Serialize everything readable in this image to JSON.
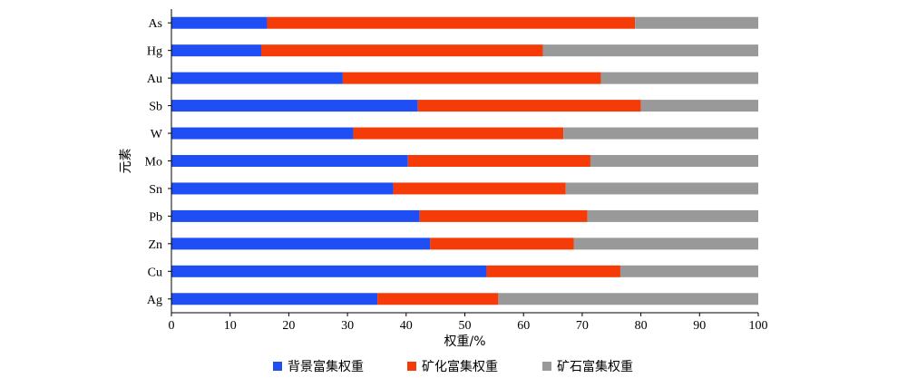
{
  "chart_data": {
    "type": "bar",
    "orientation": "horizontal",
    "stacked": true,
    "categories": [
      "As",
      "Hg",
      "Au",
      "Sb",
      "W",
      "Mo",
      "Sn",
      "Pb",
      "Zn",
      "Cu",
      "Ag"
    ],
    "series": [
      {
        "name": "背景富集权重",
        "color": "#1f4ef5",
        "values": [
          16.3,
          15.3,
          29.2,
          42.0,
          31.0,
          40.3,
          37.8,
          42.3,
          44.1,
          53.7,
          35.1
        ]
      },
      {
        "name": "矿化富集权重",
        "color": "#f53c08",
        "values": [
          62.7,
          48.0,
          44.0,
          38.0,
          35.8,
          31.1,
          29.4,
          28.6,
          24.5,
          22.8,
          20.6
        ]
      },
      {
        "name": "矿石富集权重",
        "color": "#999999",
        "values": [
          21.0,
          36.7,
          26.8,
          20.0,
          33.2,
          28.6,
          32.8,
          29.1,
          31.4,
          23.5,
          44.3
        ]
      }
    ],
    "xlabel": "权重/%",
    "ylabel": "元素",
    "xlim": [
      0,
      100
    ],
    "xticks": [
      "0",
      "10",
      "20",
      "30",
      "40",
      "50",
      "60",
      "70",
      "80",
      "90",
      "100"
    ],
    "grid": false,
    "legend": "bottom"
  }
}
